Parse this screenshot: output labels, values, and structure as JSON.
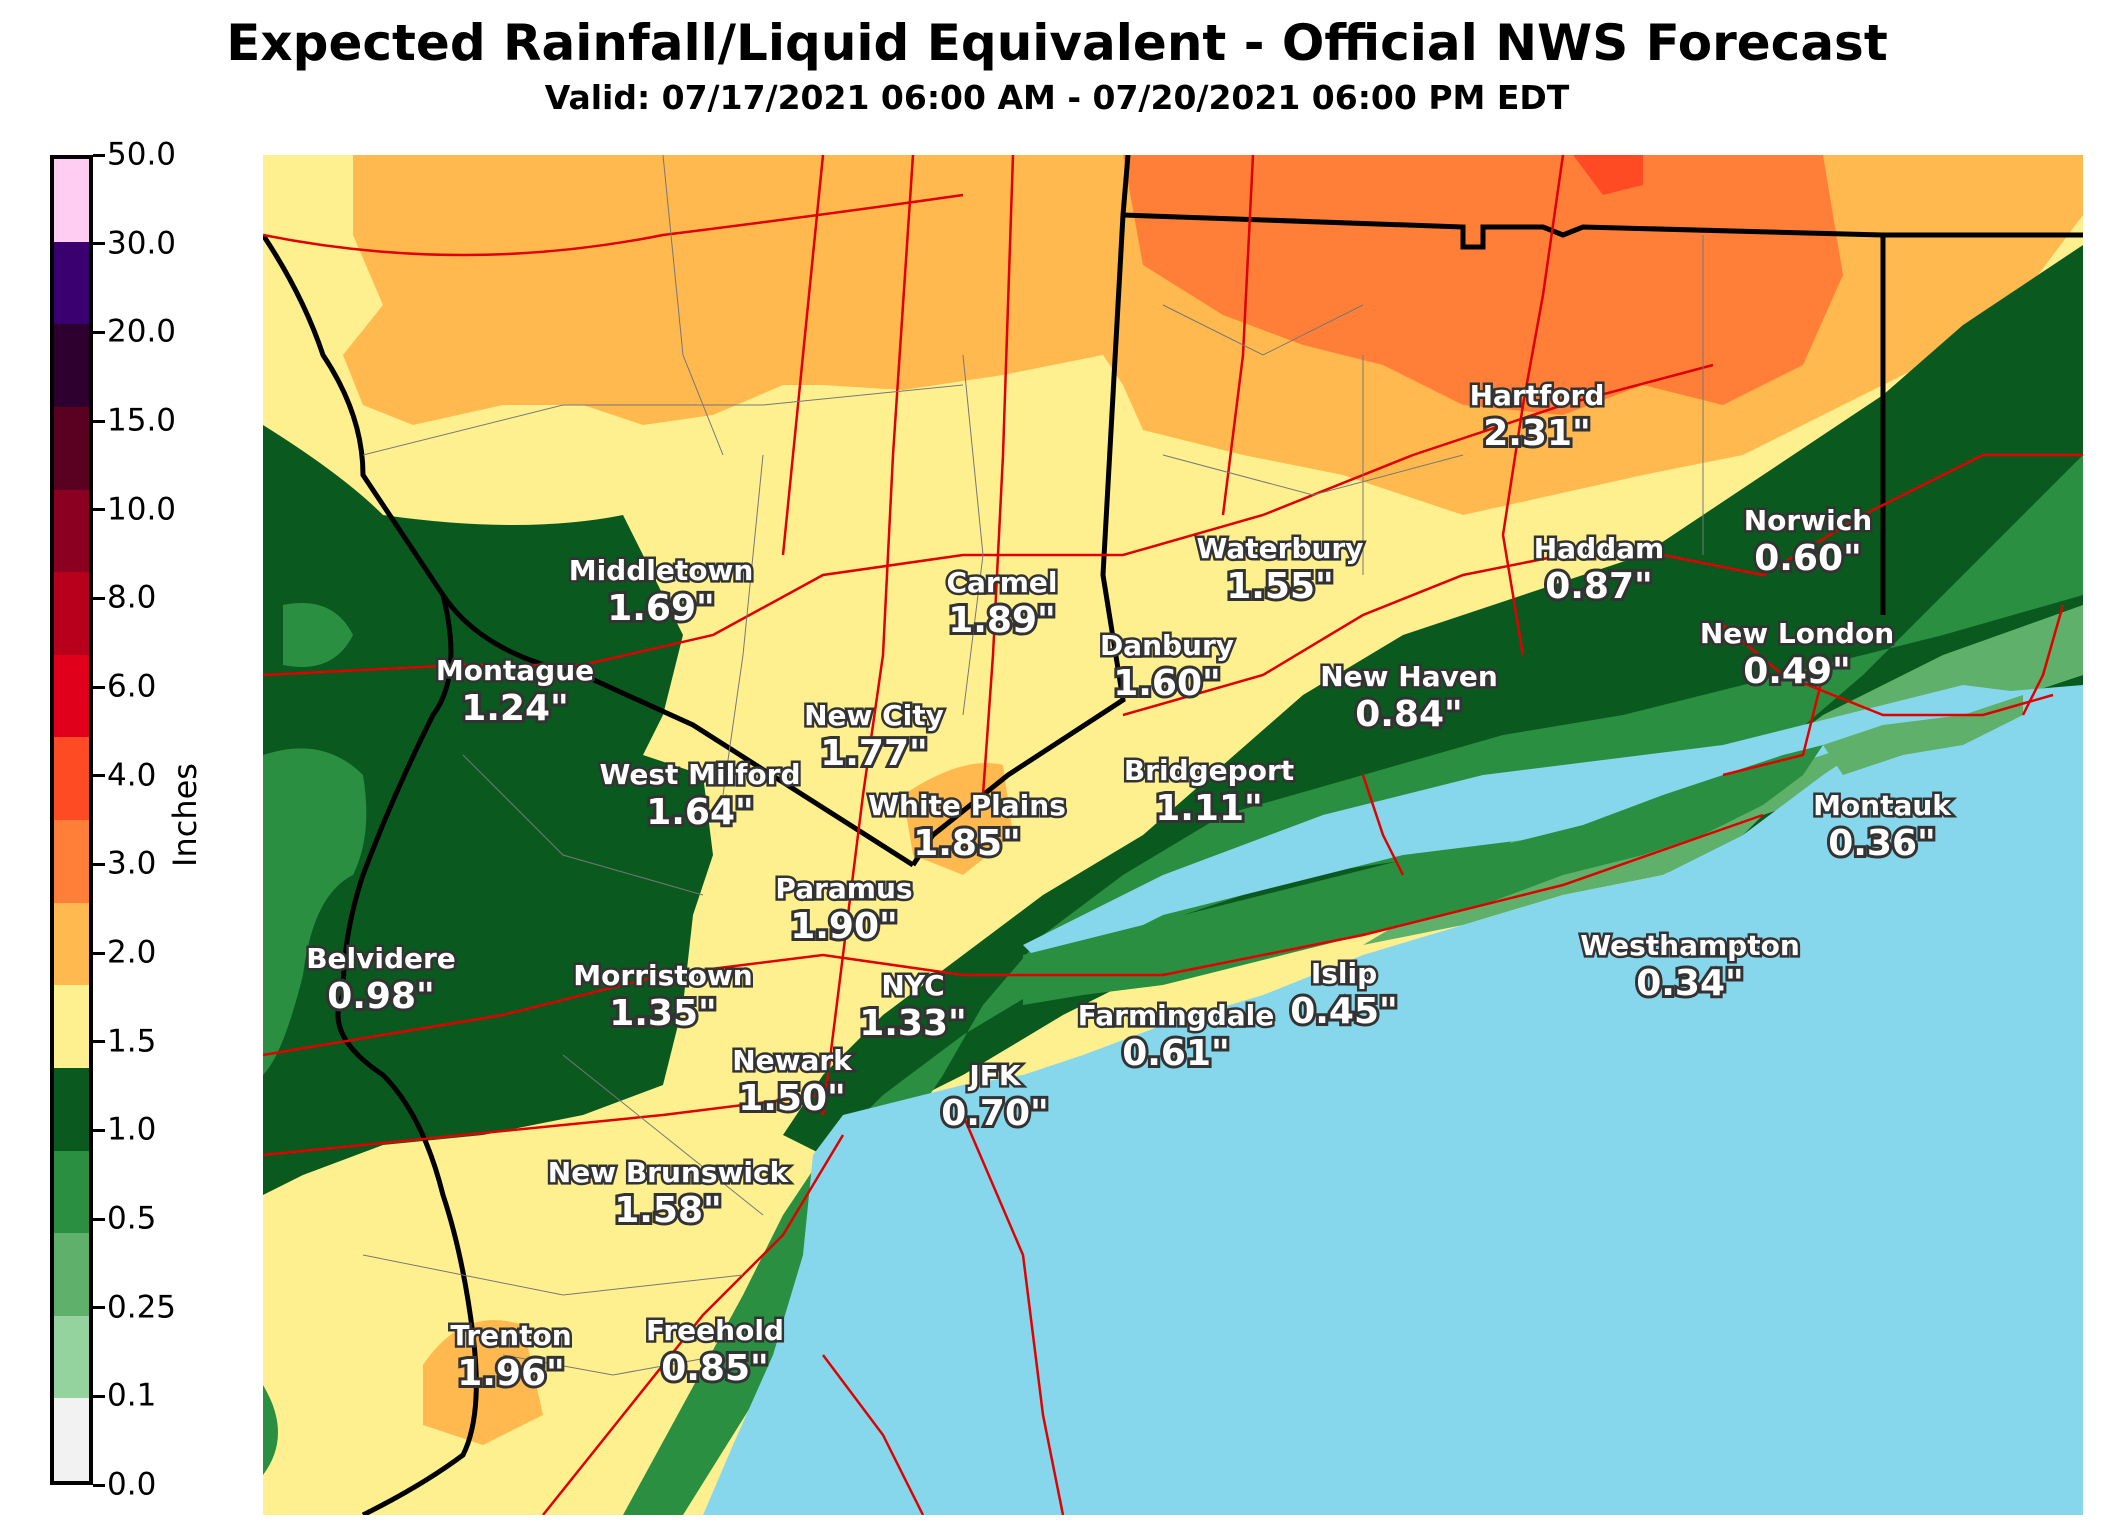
{
  "title": "Expected Rainfall/Liquid Equivalent - Official NWS Forecast",
  "subtitle": "Valid: 07/17/2021 06:00 AM - 07/20/2021 06:00 PM EDT",
  "legend": {
    "title": "Inches",
    "ticks": [
      "50.0",
      "30.0",
      "20.0",
      "15.0",
      "10.0",
      "8.0",
      "6.0",
      "4.0",
      "3.0",
      "2.0",
      "1.5",
      "1.0",
      "0.5",
      "0.25",
      "0.1",
      "0.0"
    ],
    "colors": [
      "#ffccf2",
      "#3b0070",
      "#2e0030",
      "#5a0020",
      "#8b0020",
      "#b8001c",
      "#e0001c",
      "#ff4b24",
      "#ff7f38",
      "#ffb94e",
      "#fff08f",
      "#0a5a20",
      "#2a8f40",
      "#5fb06a",
      "#94d39e",
      "#f2f2f2"
    ]
  },
  "map": {
    "water_color": "#87d7ec",
    "cities": [
      {
        "name": "Hartford",
        "value": "2.31\""
      },
      {
        "name": "Norwich",
        "value": "0.60\""
      },
      {
        "name": "Haddam",
        "value": "0.87\""
      },
      {
        "name": "Waterbury",
        "value": "1.55\""
      },
      {
        "name": "Middletown",
        "value": "1.69\""
      },
      {
        "name": "Carmel",
        "value": "1.89\""
      },
      {
        "name": "New London",
        "value": "0.49\""
      },
      {
        "name": "Danbury",
        "value": "1.60\""
      },
      {
        "name": "Montague",
        "value": "1.24\""
      },
      {
        "name": "New Haven",
        "value": "0.84\""
      },
      {
        "name": "New City",
        "value": "1.77\""
      },
      {
        "name": "West Milford",
        "value": "1.64\""
      },
      {
        "name": "Bridgeport",
        "value": "1.11\""
      },
      {
        "name": "White Plains",
        "value": "1.85\""
      },
      {
        "name": "Montauk",
        "value": "0.36\""
      },
      {
        "name": "Paramus",
        "value": "1.90\""
      },
      {
        "name": "Belvidere",
        "value": "0.98\""
      },
      {
        "name": "Morristown",
        "value": "1.35\""
      },
      {
        "name": "Westhampton",
        "value": "0.34\""
      },
      {
        "name": "Islip",
        "value": "0.45\""
      },
      {
        "name": "NYC",
        "value": "1.33\""
      },
      {
        "name": "Farmingdale",
        "value": "0.61\""
      },
      {
        "name": "Newark",
        "value": "1.50\""
      },
      {
        "name": "JFK",
        "value": "0.70\""
      },
      {
        "name": "New Brunswick",
        "value": "1.58\""
      },
      {
        "name": "Trenton",
        "value": "1.96\""
      },
      {
        "name": "Freehold",
        "value": "0.85\""
      }
    ]
  }
}
